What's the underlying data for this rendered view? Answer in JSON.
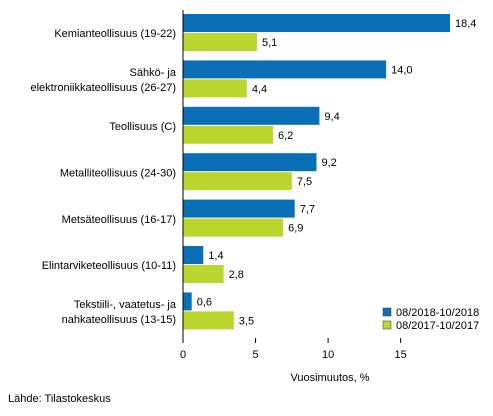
{
  "chart_data": {
    "type": "bar",
    "orientation": "horizontal",
    "categories": [
      [
        "Kemianteollisuus (19-22)"
      ],
      [
        "Sähkö- ja",
        "elektroniikkateollisuus (26-27)"
      ],
      [
        "Teollisuus (C)"
      ],
      [
        "Metalliteollisuus (24-30)"
      ],
      [
        "Metsäteollisuus (16-17)"
      ],
      [
        "Elintarviketeollisuus (10-11)"
      ],
      [
        "Tekstiili-, vaatetus- ja",
        "nahkateollisuus (13-15)"
      ]
    ],
    "series": [
      {
        "name": "08/2018-10/2018",
        "color": "#0a6fb4",
        "values": [
          18.4,
          14.0,
          9.4,
          9.2,
          7.7,
          1.4,
          0.6
        ],
        "labels": [
          "18,4",
          "14,0",
          "9,4",
          "9,2",
          "7,7",
          "1,4",
          "0,6"
        ]
      },
      {
        "name": "08/2017-10/2017",
        "color": "#bcd630",
        "values": [
          5.1,
          4.4,
          6.2,
          7.5,
          6.9,
          2.8,
          3.5
        ],
        "labels": [
          "5,1",
          "4,4",
          "6,2",
          "7,5",
          "6,9",
          "2,8",
          "3,5"
        ]
      }
    ],
    "xlabel": "Vuosimuutos, %",
    "xlim": [
      0,
      18.4
    ],
    "xticks": [
      0,
      5,
      10,
      15
    ],
    "grid": false,
    "legend_position": "bottom-right"
  },
  "source": "Lähde: Tilastokeskus"
}
